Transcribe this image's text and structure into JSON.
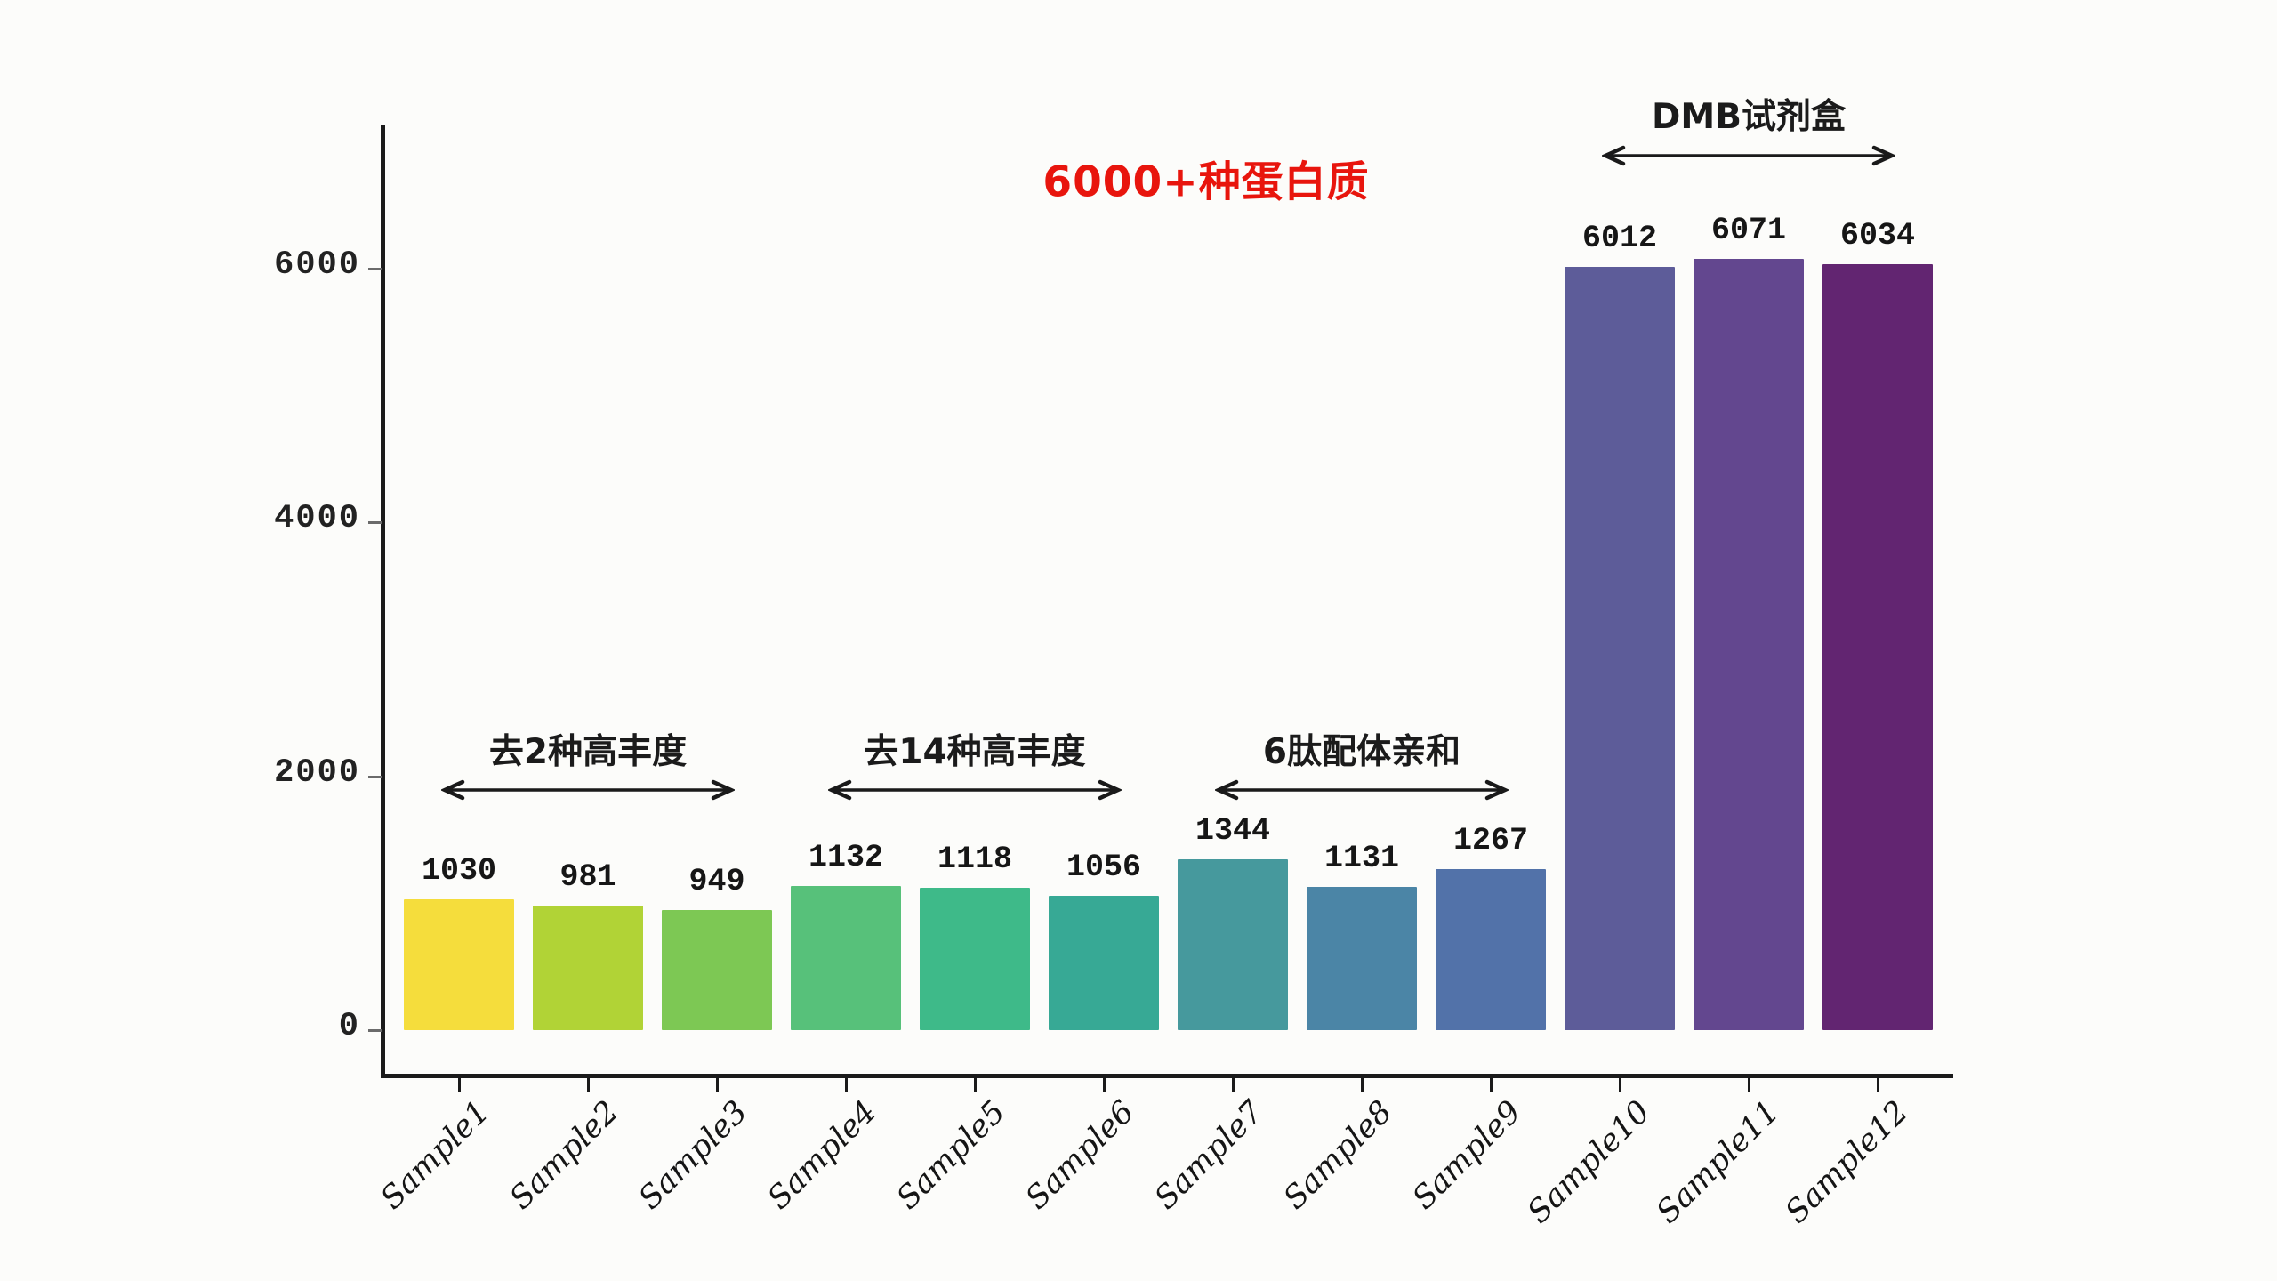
{
  "chart_data": {
    "type": "bar",
    "title": "6000+种蛋白质",
    "title_color": "#e8150d",
    "xlabel": "",
    "ylabel": "",
    "ylim": [
      0,
      7100
    ],
    "yticks": [
      0,
      2000,
      4000,
      6000
    ],
    "grid": false,
    "legend": "none",
    "categories": [
      "Sample1",
      "Sample2",
      "Sample3",
      "Sample4",
      "Sample5",
      "Sample6",
      "Sample7",
      "Sample8",
      "Sample9",
      "Sample10",
      "Sample11",
      "Sample12"
    ],
    "values": [
      1030,
      981,
      949,
      1132,
      1118,
      1056,
      1344,
      1131,
      1267,
      6012,
      6071,
      6034
    ],
    "bar_colors": [
      "#f5dd3c",
      "#b1d336",
      "#7dc854",
      "#57c17a",
      "#3eba89",
      "#37a995",
      "#46999d",
      "#4b85a6",
      "#5272a9",
      "#5d5c99",
      "#63478f",
      "#622571"
    ],
    "annotations": [
      {
        "label": "去2种高丰度",
        "start_index": 0,
        "end_index": 2,
        "position": "low"
      },
      {
        "label": "去14种高丰度",
        "start_index": 3,
        "end_index": 5,
        "position": "low"
      },
      {
        "label": "6肽配体亲和",
        "start_index": 6,
        "end_index": 8,
        "position": "low"
      },
      {
        "label": "DMB试剂盒",
        "start_index": 9,
        "end_index": 11,
        "position": "high"
      }
    ],
    "arrow_color": "#1a1a1a"
  }
}
